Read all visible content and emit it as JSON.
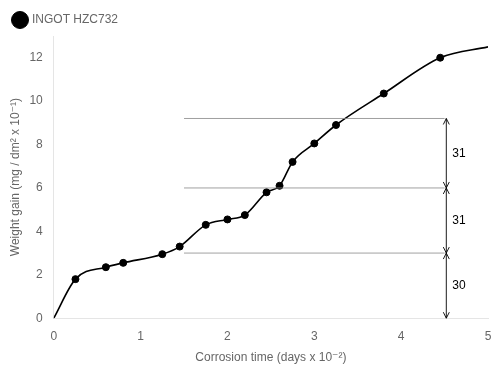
{
  "chart_data": {
    "type": "scatter",
    "xlabel": "Corrosion time (days x 10⁻²)",
    "ylabel": "Weight gain (mg / dm² x 10⁻¹)",
    "xlim": [
      0,
      5.0
    ],
    "ylim": [
      0,
      13
    ],
    "xticks": [
      0,
      1,
      2,
      3,
      4,
      5
    ],
    "yticks": [
      0,
      2,
      4,
      6,
      8,
      10,
      12
    ],
    "grid": false,
    "legend": "upper left",
    "series": [
      {
        "type": "line",
        "color": "black",
        "marker": "none",
        "x": [
          0.0,
          0.25,
          0.6,
          0.8,
          1.25,
          1.45,
          1.75,
          2.0,
          2.2,
          2.45,
          2.6,
          2.75,
          3.0,
          3.25,
          3.8,
          4.45,
          5.0
        ],
        "values": [
          0.0,
          1.8,
          2.35,
          2.55,
          2.95,
          3.3,
          4.3,
          4.55,
          4.75,
          5.8,
          6.1,
          7.2,
          8.05,
          8.9,
          10.35,
          12.0,
          12.5
        ]
      },
      {
        "name": "INGOT HZC732",
        "type": "scatter",
        "color": "black",
        "marker": "circle",
        "x": [
          0.25,
          0.6,
          0.8,
          1.25,
          1.45,
          1.75,
          2.0,
          2.2,
          2.45,
          2.6,
          2.75,
          3.0,
          3.25,
          3.8,
          4.45
        ],
        "values": [
          1.8,
          2.35,
          2.55,
          2.95,
          3.3,
          4.3,
          4.55,
          4.75,
          5.8,
          6.1,
          7.2,
          8.05,
          8.9,
          10.35,
          12.0
        ]
      }
    ],
    "h_lines": [
      {
        "y": 3.0,
        "x_from": 1.5,
        "x_to": 4.5
      },
      {
        "y": 6.0,
        "x_from": 1.5,
        "x_to": 4.5
      },
      {
        "y": 9.2,
        "x_from": 1.5,
        "x_to": 4.5
      }
    ],
    "annotations": [
      {
        "text": "30",
        "x": 4.52,
        "y_from": 0.0,
        "y_to": 3.0
      },
      {
        "text": "31",
        "x": 4.52,
        "y_from": 3.0,
        "y_to": 6.0
      },
      {
        "text": "31",
        "x": 4.52,
        "y_from": 6.0,
        "y_to": 9.2
      }
    ]
  }
}
